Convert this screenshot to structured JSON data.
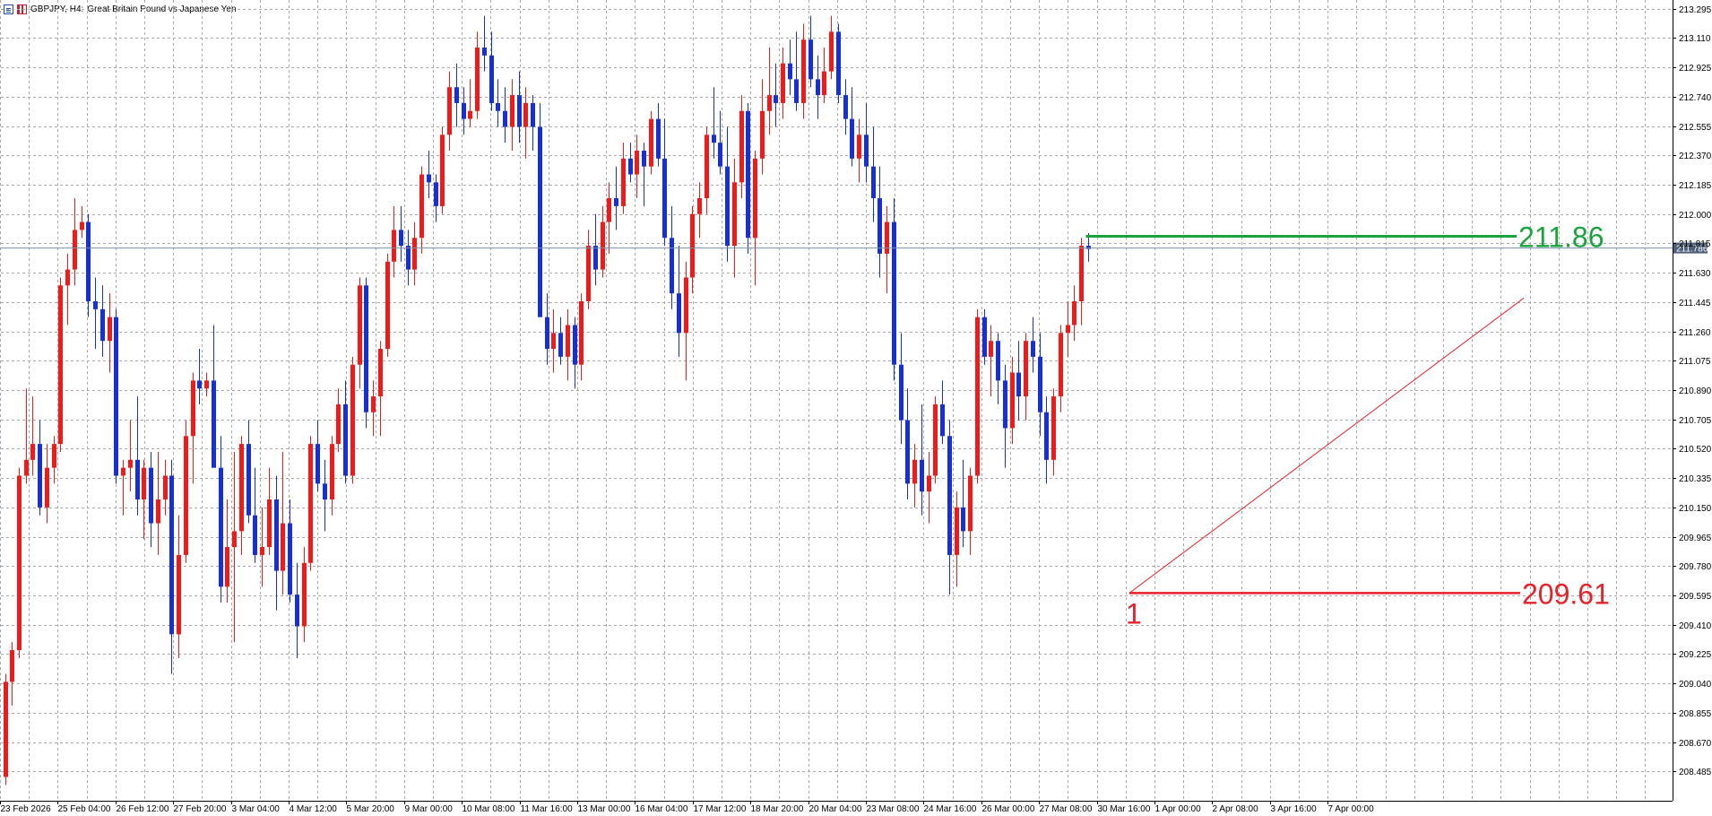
{
  "header": {
    "symbol_label": "GBPJPY, H4:",
    "description": "Great Britain Pound vs Japanese Yen"
  },
  "colors": {
    "bull": "#ef1a1a",
    "bear": "#1730d6",
    "grid": "#a9a9a9",
    "target_line": "#19a33c",
    "stop_line": "#e8202a",
    "trend_line": "#e8202a",
    "price_line": "#7a8fa8",
    "price_tag_bg": "#4d5f79"
  },
  "chart_data": {
    "type": "candlestick",
    "symbol": "GBPJPY",
    "timeframe": "H4",
    "title": "Great Britain Pound vs Japanese Yen",
    "ylim": [
      208.3,
      213.35
    ],
    "y_ticks": [
      213.295,
      213.11,
      212.925,
      212.74,
      212.555,
      212.37,
      212.185,
      212.0,
      211.815,
      211.63,
      211.445,
      211.26,
      211.075,
      210.89,
      210.705,
      210.52,
      210.335,
      210.15,
      209.965,
      209.78,
      209.595,
      209.41,
      209.225,
      209.04,
      208.855,
      208.67,
      208.485
    ],
    "y_tick_labels": [
      "213.295",
      "213.110",
      "212.925",
      "212.740",
      "212.555",
      "212.370",
      "212.185",
      "212.000",
      "211.815",
      "211.630",
      "211.445",
      "211.260",
      "211.075",
      "210.890",
      "210.705",
      "210.520",
      "210.335",
      "210.150",
      "209.965",
      "209.780",
      "209.595",
      "209.410",
      "209.225",
      "209.040",
      "208.855",
      "208.670",
      "208.485"
    ],
    "x_tick_labels": [
      {
        "index": 0,
        "label": "23 Feb 2026"
      },
      {
        "index": 9,
        "label": "25 Feb 04:00"
      },
      {
        "index": 17,
        "label": "26 Feb 12:00"
      },
      {
        "index": 25,
        "label": "27 Feb 20:00"
      },
      {
        "index": 33,
        "label": "3 Mar 04:00"
      },
      {
        "index": 41,
        "label": "4 Mar 12:00"
      },
      {
        "index": 49,
        "label": "5 Mar 20:00"
      },
      {
        "index": 57,
        "label": "9 Mar 00:00"
      },
      {
        "index": 65,
        "label": "10 Mar 08:00"
      },
      {
        "index": 73,
        "label": "11 Mar 16:00"
      },
      {
        "index": 81,
        "label": "13 Mar 00:00"
      },
      {
        "index": 89,
        "label": "16 Mar 04:00"
      },
      {
        "index": 97,
        "label": "17 Mar 12:00"
      },
      {
        "index": 105,
        "label": "18 Mar 20:00"
      },
      {
        "index": 113,
        "label": "20 Mar 04:00"
      },
      {
        "index": 121,
        "label": "23 Mar 08:00"
      },
      {
        "index": 129,
        "label": "24 Mar 16:00"
      },
      {
        "index": 137,
        "label": "26 Mar 00:00"
      },
      {
        "index": 145,
        "label": "27 Mar 08:00"
      },
      {
        "index": 153,
        "label": "30 Mar 16:00"
      },
      {
        "index": 161,
        "label": "1 Apr 00:00"
      },
      {
        "index": 169,
        "label": "2 Apr 08:00"
      },
      {
        "index": 177,
        "label": "3 Apr 16:00"
      },
      {
        "index": 185,
        "label": "7 Apr 00:00"
      }
    ],
    "ohlc": [
      [
        208.45,
        209.1,
        208.4,
        209.05
      ],
      [
        209.05,
        209.3,
        208.9,
        209.25
      ],
      [
        209.25,
        210.4,
        209.2,
        210.35
      ],
      [
        210.35,
        210.9,
        210.3,
        210.45
      ],
      [
        210.45,
        210.85,
        210.35,
        210.55
      ],
      [
        210.55,
        210.7,
        210.1,
        210.15
      ],
      [
        210.15,
        210.55,
        210.05,
        210.4
      ],
      [
        210.4,
        210.6,
        210.3,
        210.55
      ],
      [
        210.55,
        211.6,
        210.5,
        211.55
      ],
      [
        211.55,
        211.75,
        211.3,
        211.65
      ],
      [
        211.65,
        212.1,
        211.55,
        211.9
      ],
      [
        211.9,
        212.05,
        211.85,
        211.95
      ],
      [
        211.95,
        212.0,
        211.35,
        211.45
      ],
      [
        211.45,
        211.6,
        211.15,
        211.4
      ],
      [
        211.4,
        211.55,
        211.1,
        211.2
      ],
      [
        211.2,
        211.5,
        211.0,
        211.35
      ],
      [
        211.35,
        211.4,
        210.3,
        210.35
      ],
      [
        210.35,
        210.45,
        210.1,
        210.4
      ],
      [
        210.4,
        210.7,
        210.25,
        210.45
      ],
      [
        210.45,
        210.85,
        210.1,
        210.2
      ],
      [
        210.2,
        210.45,
        209.95,
        210.4
      ],
      [
        210.4,
        210.5,
        209.9,
        210.05
      ],
      [
        210.05,
        210.5,
        209.85,
        210.2
      ],
      [
        210.2,
        210.45,
        210.1,
        210.35
      ],
      [
        210.35,
        210.45,
        209.1,
        209.35
      ],
      [
        209.35,
        210.1,
        209.2,
        209.85
      ],
      [
        209.85,
        210.7,
        209.8,
        210.6
      ],
      [
        210.6,
        211.0,
        210.3,
        210.95
      ],
      [
        210.95,
        211.15,
        210.8,
        210.9
      ],
      [
        210.9,
        211.0,
        210.85,
        210.95
      ],
      [
        210.95,
        211.3,
        210.4,
        210.4
      ],
      [
        210.4,
        210.6,
        209.55,
        209.65
      ],
      [
        209.65,
        210.2,
        209.55,
        209.9
      ],
      [
        209.9,
        210.5,
        209.3,
        210.0
      ],
      [
        210.0,
        210.6,
        209.85,
        210.55
      ],
      [
        210.55,
        210.7,
        210.05,
        210.1
      ],
      [
        210.1,
        210.4,
        209.8,
        209.85
      ],
      [
        209.85,
        210.15,
        209.65,
        209.9
      ],
      [
        209.9,
        210.4,
        209.85,
        210.2
      ],
      [
        210.2,
        210.35,
        209.5,
        209.75
      ],
      [
        209.75,
        210.5,
        209.6,
        210.05
      ],
      [
        210.05,
        210.2,
        209.55,
        209.6
      ],
      [
        209.6,
        209.8,
        209.2,
        209.4
      ],
      [
        209.4,
        209.9,
        209.3,
        209.8
      ],
      [
        209.8,
        210.6,
        209.75,
        210.55
      ],
      [
        210.55,
        210.7,
        210.25,
        210.3
      ],
      [
        210.3,
        210.45,
        210.0,
        210.2
      ],
      [
        210.2,
        210.6,
        210.1,
        210.55
      ],
      [
        210.55,
        210.9,
        210.5,
        210.8
      ],
      [
        210.8,
        210.95,
        210.3,
        210.35
      ],
      [
        210.35,
        211.1,
        210.3,
        211.05
      ],
      [
        211.05,
        211.6,
        210.9,
        211.55
      ],
      [
        211.55,
        211.6,
        210.65,
        210.75
      ],
      [
        210.75,
        210.95,
        210.6,
        210.85
      ],
      [
        210.85,
        211.2,
        210.6,
        211.15
      ],
      [
        211.15,
        211.75,
        211.1,
        211.7
      ],
      [
        211.7,
        212.05,
        211.6,
        211.9
      ],
      [
        211.9,
        212.05,
        211.7,
        211.8
      ],
      [
        211.8,
        211.9,
        211.55,
        211.65
      ],
      [
        211.65,
        211.95,
        211.55,
        211.85
      ],
      [
        211.85,
        212.3,
        211.75,
        212.25
      ],
      [
        212.25,
        212.4,
        212.1,
        212.2
      ],
      [
        212.2,
        212.25,
        211.95,
        212.05
      ],
      [
        212.05,
        212.55,
        212.0,
        212.5
      ],
      [
        212.5,
        212.9,
        212.4,
        212.8
      ],
      [
        212.8,
        212.95,
        212.55,
        212.7
      ],
      [
        212.7,
        212.8,
        212.5,
        212.6
      ],
      [
        212.6,
        212.85,
        212.55,
        212.65
      ],
      [
        212.65,
        213.15,
        212.6,
        213.05
      ],
      [
        213.05,
        213.25,
        212.9,
        213.0
      ],
      [
        213.0,
        213.15,
        212.65,
        212.7
      ],
      [
        212.7,
        212.85,
        212.55,
        212.65
      ],
      [
        212.65,
        212.8,
        212.45,
        212.55
      ],
      [
        212.55,
        212.85,
        212.4,
        212.75
      ],
      [
        212.75,
        212.9,
        212.45,
        212.55
      ],
      [
        212.55,
        212.8,
        212.35,
        212.7
      ],
      [
        212.7,
        212.75,
        212.4,
        212.55
      ],
      [
        212.55,
        212.7,
        211.35,
        211.35
      ],
      [
        211.35,
        211.5,
        211.05,
        211.15
      ],
      [
        211.15,
        211.4,
        211.0,
        211.25
      ],
      [
        211.25,
        211.35,
        211.05,
        211.1
      ],
      [
        211.1,
        211.4,
        210.95,
        211.3
      ],
      [
        211.3,
        211.35,
        210.9,
        211.05
      ],
      [
        211.05,
        211.5,
        210.95,
        211.45
      ],
      [
        211.45,
        211.9,
        211.4,
        211.8
      ],
      [
        211.8,
        212.0,
        211.55,
        211.65
      ],
      [
        211.65,
        212.05,
        211.6,
        211.95
      ],
      [
        211.95,
        212.2,
        211.75,
        212.1
      ],
      [
        212.1,
        212.3,
        211.9,
        212.05
      ],
      [
        212.05,
        212.45,
        212.0,
        212.35
      ],
      [
        212.35,
        212.45,
        212.2,
        212.25
      ],
      [
        212.25,
        212.5,
        212.1,
        212.4
      ],
      [
        212.4,
        212.45,
        212.05,
        212.3
      ],
      [
        212.3,
        212.65,
        212.25,
        212.6
      ],
      [
        212.6,
        212.7,
        212.3,
        212.35
      ],
      [
        212.35,
        212.6,
        211.8,
        211.85
      ],
      [
        211.85,
        212.05,
        211.4,
        211.5
      ],
      [
        211.5,
        211.8,
        211.1,
        211.25
      ],
      [
        211.25,
        211.7,
        210.95,
        211.6
      ],
      [
        211.6,
        212.05,
        211.5,
        212.0
      ],
      [
        212.0,
        212.2,
        211.85,
        212.1
      ],
      [
        212.1,
        212.55,
        212.0,
        212.5
      ],
      [
        212.5,
        212.8,
        212.35,
        212.45
      ],
      [
        212.45,
        212.65,
        212.25,
        212.3
      ],
      [
        212.3,
        212.55,
        211.7,
        211.8
      ],
      [
        211.8,
        212.35,
        211.6,
        212.2
      ],
      [
        212.2,
        212.75,
        212.1,
        212.65
      ],
      [
        212.65,
        212.7,
        211.75,
        211.85
      ],
      [
        211.85,
        212.4,
        211.55,
        212.35
      ],
      [
        212.35,
        212.85,
        212.25,
        212.65
      ],
      [
        212.65,
        213.05,
        212.5,
        212.75
      ],
      [
        212.75,
        212.95,
        212.55,
        212.7
      ],
      [
        212.7,
        213.05,
        212.6,
        212.95
      ],
      [
        212.95,
        213.1,
        212.75,
        212.85
      ],
      [
        212.85,
        213.15,
        212.65,
        212.7
      ],
      [
        212.7,
        213.2,
        212.6,
        213.1
      ],
      [
        213.1,
        213.25,
        212.8,
        212.85
      ],
      [
        212.85,
        213.0,
        212.6,
        212.75
      ],
      [
        212.75,
        213.05,
        212.7,
        212.9
      ],
      [
        212.9,
        213.25,
        212.85,
        213.15
      ],
      [
        213.15,
        213.2,
        212.7,
        212.75
      ],
      [
        212.75,
        212.85,
        212.5,
        212.6
      ],
      [
        212.6,
        212.8,
        212.3,
        212.35
      ],
      [
        212.35,
        212.6,
        212.2,
        212.5
      ]
    ],
    "annotations": {
      "target_price": 211.86,
      "target_label": "211.86",
      "stop_price": 209.61,
      "stop_label": "209.61",
      "pivot_label": "1",
      "current_price": 211.786,
      "current_price_label": "211.786",
      "trendline": {
        "from_index": 151,
        "from_price": 209.61,
        "to_index": 208,
        "to_price": 211.47
      }
    }
  }
}
